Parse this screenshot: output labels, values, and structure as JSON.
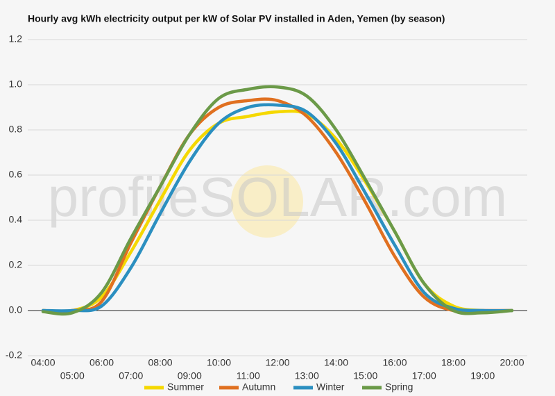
{
  "chart_data": {
    "type": "line",
    "title": "Hourly avg kWh electricity output per kW of Solar PV installed in Aden, Yemen (by season)",
    "watermark": "profileSOLAR.com",
    "categories": [
      "04:00",
      "05:00",
      "06:00",
      "07:00",
      "08:00",
      "09:00",
      "10:00",
      "11:00",
      "12:00",
      "13:00",
      "14:00",
      "15:00",
      "16:00",
      "17:00",
      "18:00",
      "19:00",
      "20:00"
    ],
    "series": [
      {
        "name": "Summer",
        "color": "#f5d800",
        "values": [
          0,
          0,
          0.06,
          0.26,
          0.49,
          0.71,
          0.83,
          0.86,
          0.88,
          0.87,
          0.76,
          0.57,
          0.35,
          0.12,
          0.02,
          0,
          0
        ]
      },
      {
        "name": "Autumn",
        "color": "#e07020",
        "values": [
          0,
          0,
          0.04,
          0.3,
          0.55,
          0.78,
          0.9,
          0.93,
          0.93,
          0.86,
          0.7,
          0.48,
          0.24,
          0.06,
          0,
          0,
          0
        ]
      },
      {
        "name": "Winter",
        "color": "#2b8fc0",
        "values": [
          0,
          0,
          0.02,
          0.19,
          0.43,
          0.66,
          0.83,
          0.9,
          0.91,
          0.88,
          0.74,
          0.52,
          0.29,
          0.08,
          0.01,
          0,
          0
        ]
      },
      {
        "name": "Spring",
        "color": "#6b9a48",
        "values": [
          -0.005,
          -0.01,
          0.08,
          0.32,
          0.55,
          0.78,
          0.94,
          0.98,
          0.99,
          0.95,
          0.8,
          0.58,
          0.35,
          0.12,
          0,
          -0.01,
          0
        ]
      }
    ],
    "ylim": [
      -0.2,
      1.2
    ],
    "yticks": [
      -0.2,
      {
        "value": 0,
        "label": "0.0"
      },
      0.2,
      0.4,
      0.6,
      0.8,
      {
        "value": 1,
        "label": "1.0"
      },
      1.2
    ],
    "grid": true
  }
}
